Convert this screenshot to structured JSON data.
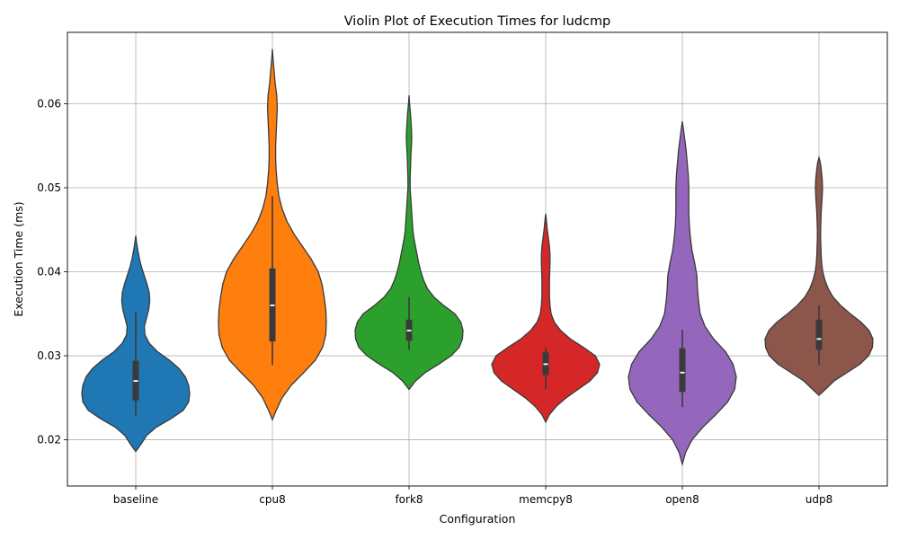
{
  "chart_data": {
    "type": "violin",
    "title": "Violin Plot of Execution Times for ludcmp",
    "xlabel": "Configuration",
    "ylabel": "Execution Time (ms)",
    "categories": [
      "baseline",
      "cpu8",
      "fork8",
      "memcpy8",
      "open8",
      "udp8"
    ],
    "yticks": [
      "0.02",
      "0.03",
      "0.04",
      "0.05",
      "0.06"
    ],
    "ylim": [
      0.0145,
      0.0685
    ],
    "grid": true,
    "series": [
      {
        "category": "baseline",
        "color": "#1f77b4",
        "range": [
          0.0186,
          0.0443
        ],
        "whisker": [
          0.0228,
          0.0352
        ],
        "q1": 0.0247,
        "median": 0.027,
        "q3": 0.0294,
        "density": [
          [
            0.0186,
            0
          ],
          [
            0.0195,
            0.1
          ],
          [
            0.0205,
            0.2
          ],
          [
            0.0215,
            0.38
          ],
          [
            0.0225,
            0.65
          ],
          [
            0.0235,
            0.88
          ],
          [
            0.0245,
            0.98
          ],
          [
            0.0255,
            1.0
          ],
          [
            0.0265,
            0.98
          ],
          [
            0.0275,
            0.92
          ],
          [
            0.0285,
            0.8
          ],
          [
            0.0295,
            0.62
          ],
          [
            0.0305,
            0.4
          ],
          [
            0.0315,
            0.25
          ],
          [
            0.0325,
            0.17
          ],
          [
            0.0335,
            0.16
          ],
          [
            0.0345,
            0.2
          ],
          [
            0.0355,
            0.24
          ],
          [
            0.0365,
            0.26
          ],
          [
            0.0375,
            0.25
          ],
          [
            0.0385,
            0.21
          ],
          [
            0.0395,
            0.16
          ],
          [
            0.0405,
            0.11
          ],
          [
            0.0415,
            0.07
          ],
          [
            0.0425,
            0.04
          ],
          [
            0.0435,
            0.015
          ],
          [
            0.0443,
            0
          ]
        ]
      },
      {
        "category": "cpu8",
        "color": "#ff7f0e",
        "range": [
          0.0224,
          0.0665
        ],
        "whisker": [
          0.0289,
          0.049
        ],
        "q1": 0.0317,
        "median": 0.036,
        "q3": 0.0404,
        "density": [
          [
            0.0224,
            0
          ],
          [
            0.0235,
            0.07
          ],
          [
            0.025,
            0.18
          ],
          [
            0.0265,
            0.35
          ],
          [
            0.028,
            0.58
          ],
          [
            0.0295,
            0.8
          ],
          [
            0.031,
            0.93
          ],
          [
            0.0325,
            0.99
          ],
          [
            0.034,
            1.0
          ],
          [
            0.0355,
            0.99
          ],
          [
            0.037,
            0.96
          ],
          [
            0.0385,
            0.92
          ],
          [
            0.04,
            0.85
          ],
          [
            0.0415,
            0.72
          ],
          [
            0.043,
            0.56
          ],
          [
            0.0445,
            0.4
          ],
          [
            0.046,
            0.27
          ],
          [
            0.0475,
            0.18
          ],
          [
            0.049,
            0.12
          ],
          [
            0.0505,
            0.09
          ],
          [
            0.052,
            0.07
          ],
          [
            0.0535,
            0.06
          ],
          [
            0.055,
            0.06
          ],
          [
            0.0565,
            0.07
          ],
          [
            0.058,
            0.08
          ],
          [
            0.0595,
            0.09
          ],
          [
            0.061,
            0.08
          ],
          [
            0.0625,
            0.05
          ],
          [
            0.064,
            0.03
          ],
          [
            0.0655,
            0.01
          ],
          [
            0.0665,
            0
          ]
        ]
      },
      {
        "category": "fork8",
        "color": "#2ca02c",
        "range": [
          0.026,
          0.061
        ],
        "whisker": [
          0.0307,
          0.037
        ],
        "q1": 0.0318,
        "median": 0.033,
        "q3": 0.0343,
        "density": [
          [
            0.026,
            0
          ],
          [
            0.027,
            0.12
          ],
          [
            0.028,
            0.3
          ],
          [
            0.029,
            0.55
          ],
          [
            0.03,
            0.78
          ],
          [
            0.031,
            0.93
          ],
          [
            0.032,
            0.99
          ],
          [
            0.033,
            1.0
          ],
          [
            0.034,
            0.96
          ],
          [
            0.035,
            0.85
          ],
          [
            0.036,
            0.64
          ],
          [
            0.037,
            0.46
          ],
          [
            0.038,
            0.34
          ],
          [
            0.039,
            0.27
          ],
          [
            0.04,
            0.22
          ],
          [
            0.041,
            0.18
          ],
          [
            0.042,
            0.15
          ],
          [
            0.043,
            0.12
          ],
          [
            0.044,
            0.09
          ],
          [
            0.045,
            0.07
          ],
          [
            0.046,
            0.06
          ],
          [
            0.047,
            0.05
          ],
          [
            0.048,
            0.04
          ],
          [
            0.049,
            0.03
          ],
          [
            0.05,
            0.02
          ],
          [
            0.051,
            0.02
          ],
          [
            0.052,
            0.025
          ],
          [
            0.053,
            0.03
          ],
          [
            0.054,
            0.035
          ],
          [
            0.055,
            0.045
          ],
          [
            0.056,
            0.05
          ],
          [
            0.057,
            0.045
          ],
          [
            0.058,
            0.035
          ],
          [
            0.059,
            0.025
          ],
          [
            0.06,
            0.01
          ],
          [
            0.061,
            0
          ]
        ]
      },
      {
        "category": "memcpy8",
        "color": "#d62728",
        "range": [
          0.0221,
          0.0469
        ],
        "whisker": [
          0.026,
          0.031
        ],
        "q1": 0.0277,
        "median": 0.029,
        "q3": 0.0304,
        "density": [
          [
            0.0221,
            0
          ],
          [
            0.023,
            0.07
          ],
          [
            0.024,
            0.2
          ],
          [
            0.025,
            0.38
          ],
          [
            0.026,
            0.6
          ],
          [
            0.027,
            0.82
          ],
          [
            0.028,
            0.96
          ],
          [
            0.029,
            1.0
          ],
          [
            0.03,
            0.92
          ],
          [
            0.031,
            0.7
          ],
          [
            0.032,
            0.46
          ],
          [
            0.033,
            0.28
          ],
          [
            0.034,
            0.16
          ],
          [
            0.035,
            0.1
          ],
          [
            0.036,
            0.08
          ],
          [
            0.037,
            0.07
          ],
          [
            0.038,
            0.07
          ],
          [
            0.039,
            0.07
          ],
          [
            0.04,
            0.075
          ],
          [
            0.041,
            0.08
          ],
          [
            0.042,
            0.08
          ],
          [
            0.043,
            0.07
          ],
          [
            0.044,
            0.05
          ],
          [
            0.045,
            0.03
          ],
          [
            0.046,
            0.015
          ],
          [
            0.0469,
            0
          ]
        ]
      },
      {
        "category": "open8",
        "color": "#9467bd",
        "range": [
          0.0171,
          0.0579
        ],
        "whisker": [
          0.0239,
          0.0331
        ],
        "q1": 0.0257,
        "median": 0.028,
        "q3": 0.0309,
        "density": [
          [
            0.0171,
            0
          ],
          [
            0.0185,
            0.06
          ],
          [
            0.02,
            0.18
          ],
          [
            0.0215,
            0.38
          ],
          [
            0.023,
            0.62
          ],
          [
            0.0245,
            0.84
          ],
          [
            0.026,
            0.97
          ],
          [
            0.0275,
            1.0
          ],
          [
            0.029,
            0.94
          ],
          [
            0.0305,
            0.8
          ],
          [
            0.032,
            0.58
          ],
          [
            0.0335,
            0.42
          ],
          [
            0.035,
            0.33
          ],
          [
            0.0365,
            0.3
          ],
          [
            0.038,
            0.28
          ],
          [
            0.0395,
            0.27
          ],
          [
            0.041,
            0.23
          ],
          [
            0.0425,
            0.18
          ],
          [
            0.044,
            0.15
          ],
          [
            0.0455,
            0.13
          ],
          [
            0.047,
            0.12
          ],
          [
            0.0485,
            0.12
          ],
          [
            0.05,
            0.12
          ],
          [
            0.0515,
            0.11
          ],
          [
            0.053,
            0.09
          ],
          [
            0.0545,
            0.07
          ],
          [
            0.056,
            0.04
          ],
          [
            0.057,
            0.02
          ],
          [
            0.0579,
            0
          ]
        ]
      },
      {
        "category": "udp8",
        "color": "#8c564b",
        "range": [
          0.0253,
          0.0536
        ],
        "whisker": [
          0.0289,
          0.036
        ],
        "q1": 0.0307,
        "median": 0.032,
        "q3": 0.0343,
        "density": [
          [
            0.0253,
            0
          ],
          [
            0.026,
            0.12
          ],
          [
            0.027,
            0.28
          ],
          [
            0.028,
            0.52
          ],
          [
            0.029,
            0.76
          ],
          [
            0.03,
            0.92
          ],
          [
            0.031,
            0.99
          ],
          [
            0.032,
            1.0
          ],
          [
            0.033,
            0.93
          ],
          [
            0.034,
            0.78
          ],
          [
            0.035,
            0.58
          ],
          [
            0.036,
            0.4
          ],
          [
            0.037,
            0.26
          ],
          [
            0.038,
            0.17
          ],
          [
            0.039,
            0.11
          ],
          [
            0.04,
            0.07
          ],
          [
            0.041,
            0.05
          ],
          [
            0.042,
            0.04
          ],
          [
            0.043,
            0.035
          ],
          [
            0.044,
            0.03
          ],
          [
            0.045,
            0.03
          ],
          [
            0.046,
            0.035
          ],
          [
            0.047,
            0.04
          ],
          [
            0.048,
            0.05
          ],
          [
            0.049,
            0.06
          ],
          [
            0.05,
            0.065
          ],
          [
            0.051,
            0.06
          ],
          [
            0.052,
            0.045
          ],
          [
            0.053,
            0.025
          ],
          [
            0.0536,
            0
          ]
        ]
      }
    ]
  }
}
